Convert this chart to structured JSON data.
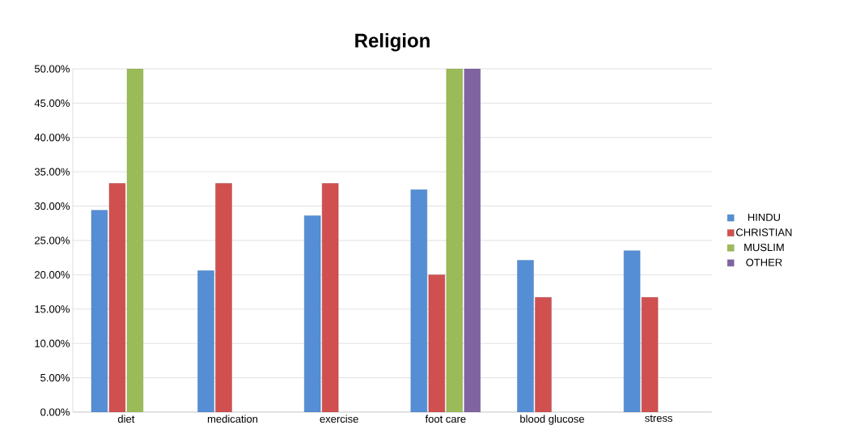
{
  "chart_data": {
    "type": "bar",
    "title": "**Religion**",
    "categories": [
      "diet",
      "medication",
      "exercise",
      "foot care",
      "blood glucose",
      "stress"
    ],
    "series": [
      {
        "name": "HINDU",
        "color": "#558ed5",
        "values": [
          29.4,
          20.6,
          28.6,
          32.4,
          22.1,
          23.5
        ]
      },
      {
        "name": "CHRISTIAN",
        "color": "#d05050",
        "values": [
          33.3,
          33.3,
          33.3,
          20.0,
          16.7,
          16.7
        ]
      },
      {
        "name": "MUSLIM",
        "color": "#9bbb59",
        "values": [
          50.0,
          null,
          null,
          50.0,
          null,
          null
        ]
      },
      {
        "name": "OTHER",
        "color": "#8064a2",
        "values": [
          null,
          null,
          null,
          50.0,
          null,
          null
        ]
      }
    ],
    "ylim": [
      0,
      50
    ],
    "yticks": [
      {
        "value": 0,
        "label": "0.00%"
      },
      {
        "value": 5,
        "label": "5.00%"
      },
      {
        "value": 10,
        "label": "10.00%"
      },
      {
        "value": 15,
        "label": "15.00%"
      },
      {
        "value": 20,
        "label": "20.00%"
      },
      {
        "value": 25,
        "label": "25.00%"
      },
      {
        "value": 30,
        "label": "30.00%"
      },
      {
        "value": 35,
        "label": "35.00%"
      },
      {
        "value": 40,
        "label": "40.00%"
      },
      {
        "value": 45,
        "label": "45.00%"
      },
      {
        "value": 50,
        "label": "50.00%"
      }
    ],
    "grid": "y",
    "legend": "right"
  }
}
